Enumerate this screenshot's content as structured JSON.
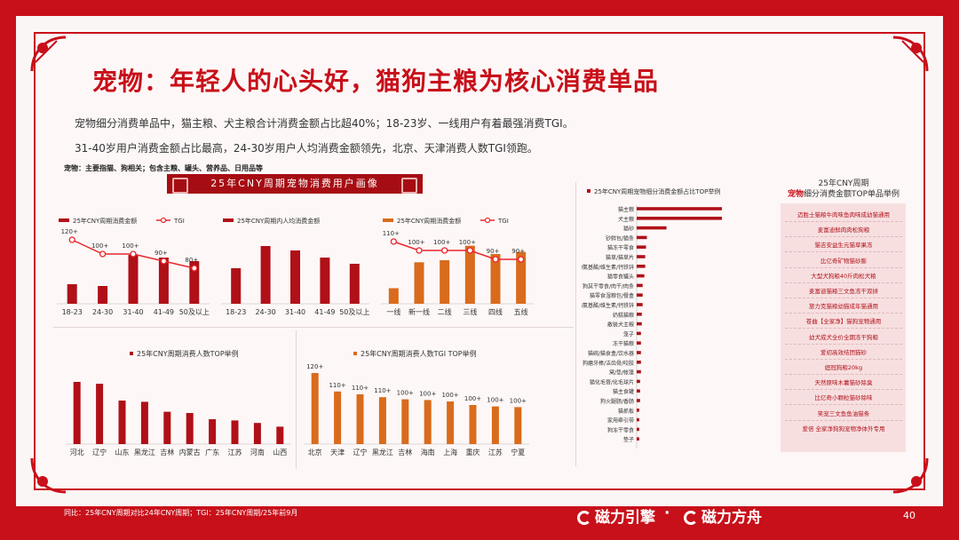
{
  "title": "宠物：年轻人的心头好，猫狗主粮为核心消费单品",
  "subtitle_1": "宠物细分消费单品中，猫主粮、犬主粮合计消费金额占比超40%；18-23岁、一线用户有着最强消费TGI。",
  "subtitle_2": "31-40岁用户消费金额占比最高，24-30岁用户人均消费金额领先，北京、天津消费人数TGI领跑。",
  "category_note": "宠物：主要指猫、狗相关；包含主粮、罐头、营养品、日用品等",
  "banner": "25年CNY周期宠物消费用户画像",
  "footer_note": "同比：25年CNY周期对比24年CNY周期；TGI：25年CNY周期/25年前9月",
  "logo_left": "磁力引擎",
  "logo_dot": "·",
  "logo_right": "磁力方舟",
  "page_number": "40",
  "right_panel": {
    "title_line1": "25年CNY周期",
    "title_highlight": "宠物",
    "title_line2_rest": "细分消费金额TOP单品举例",
    "items": [
      "迈胜士猫粮牛肉味鱼肉味成幼猫通用",
      "麦富迪鲜肉肉松狗粮",
      "猫吉安益生元猫草果冻",
      "比亿奇矿物猫砂膨",
      "大型犬狗粮40斤肉松犬粮",
      "麦富迪猫粮三文鱼冻干双拼",
      "旅力克猫粮幼猫成年猫通用",
      "苍曲【全家净】猫狗宠物通用",
      "幼犬成犬全价全期冻干狗粮",
      "爱初高效结团猫砂",
      "妞冠狗粮20kg",
      "天然原味木薯猫砂除臭",
      "比亿奇小颗粒猫砂除味",
      "笑宠三文鱼鱼油猫条",
      "爱倍 全家净狗狗宠物净体外专用"
    ]
  },
  "chart_data": [
    {
      "type": "bar",
      "series": [
        {
          "name": "25年CNY周期消费金额",
          "values": [
            22,
            20,
            55,
            52,
            48
          ]
        }
      ],
      "line_series": {
        "name": "TGI",
        "values": [
          120,
          100,
          100,
          90,
          80
        ]
      },
      "line_labels": [
        "120+",
        "100+",
        "100+",
        "90+",
        "80+"
      ],
      "categories": [
        "18-23",
        "24-30",
        "31-40",
        "41-49",
        "50及以上"
      ],
      "ylim": [
        0,
        70
      ],
      "legend": "top",
      "colors": {
        "bar": "#b01018",
        "line": "#e8272d"
      }
    },
    {
      "type": "bar",
      "series": [
        {
          "name": "25年CNY周期内人均消费金额",
          "values": [
            40,
            65,
            60,
            52,
            45
          ]
        }
      ],
      "categories": [
        "18-23",
        "24-30",
        "31-40",
        "41-49",
        "50及以上"
      ],
      "ylim": [
        0,
        70
      ],
      "legend": "top",
      "colors": {
        "bar": "#b01018"
      }
    },
    {
      "type": "bar",
      "series": [
        {
          "name": "25年CNY周期消费金额",
          "values": [
            15,
            40,
            42,
            56,
            48,
            50
          ]
        }
      ],
      "line_series": {
        "name": "TGI",
        "values": [
          110,
          100,
          100,
          100,
          90,
          90
        ]
      },
      "line_labels": [
        "110+",
        "100+",
        "100+",
        "100+",
        "90+",
        "90+"
      ],
      "categories": [
        "一线",
        "新一线",
        "二线",
        "三线",
        "四线",
        "五线"
      ],
      "ylim": [
        0,
        60
      ],
      "legend": "top",
      "colors": {
        "bar": "#d96b1c",
        "line": "#e8272d"
      }
    },
    {
      "type": "bar",
      "title": "25年CNY周期消费人数TOP举例",
      "categories": [
        "河北",
        "辽宁",
        "山东",
        "黑龙江",
        "吉林",
        "内蒙古",
        "广东",
        "江苏",
        "河南",
        "山西"
      ],
      "values": [
        100,
        97,
        70,
        68,
        52,
        50,
        40,
        38,
        34,
        28
      ],
      "ylim": [
        0,
        100
      ],
      "colors": {
        "bar": "#b01018"
      }
    },
    {
      "type": "bar",
      "title": "25年CNY周期消费人数TGI TOP举例",
      "categories": [
        "北京",
        "天津",
        "辽宁",
        "黑龙江",
        "吉林",
        "海南",
        "上海",
        "重庆",
        "江苏",
        "宁夏"
      ],
      "values": [
        120,
        110,
        110,
        110,
        100,
        100,
        100,
        100,
        100,
        100
      ],
      "labels": [
        "120+",
        "110+",
        "110+",
        "110+",
        "100+",
        "100+",
        "100+",
        "100+",
        "100+",
        "100+"
      ],
      "display_heights": [
        100,
        74,
        70,
        66,
        63,
        62,
        60,
        55,
        53,
        52
      ],
      "colors": {
        "bar": "#d96b1c"
      }
    },
    {
      "type": "bar",
      "orientation": "horizontal",
      "series": [
        {
          "name": "25年CNY周期宠物细分消费金额占比TOP举例"
        }
      ],
      "legend": "top",
      "categories": [
        "猫主粮",
        "犬主粮",
        "猫砂",
        "钞鲜包/猫条",
        "猫冻干零食",
        "猫草/猫草片",
        "狗氨基酸/维生素/钙铁锌",
        "猫零食罐头",
        "狗其干零食/肉干/肉条",
        "猫零食湿粮包/餐盒",
        "猫氨基酸/维生素/钙铁锌",
        "奶糕猫粮",
        "散装犬主粮",
        "笼子",
        "冻干猫粮",
        "猫碗/猫食盒/饮水器",
        "狗磨牙棒/洁齿骨/咬胶",
        "窝/垫/帐篷",
        "猫化毛膏/化毛球片",
        "猫主食罐",
        "狗火腿肠/香肠",
        "猫抓板",
        "家用牵引带",
        "狗冻干零食",
        "垫子"
      ],
      "values": [
        100,
        100,
        35,
        12,
        11,
        10,
        10,
        9,
        7,
        7,
        7,
        6,
        6,
        5,
        5,
        5,
        5,
        5,
        4,
        4,
        4,
        3,
        3,
        3,
        3
      ],
      "xlim": [
        0,
        100
      ],
      "colors": {
        "bar": "#b01018"
      }
    }
  ]
}
